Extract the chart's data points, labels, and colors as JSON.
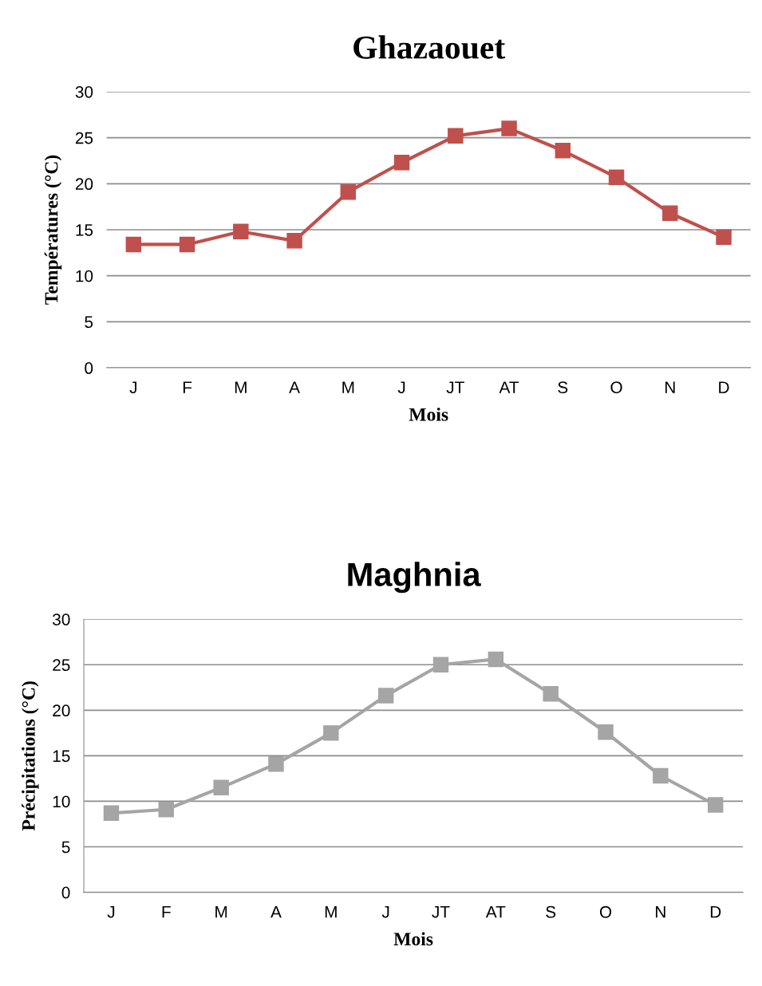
{
  "chart_data": [
    {
      "type": "line",
      "title": "Ghazaouet",
      "xlabel": "Mois",
      "ylabel": "Températures (°C)",
      "categories": [
        "J",
        "F",
        "M",
        "A",
        "M",
        "J",
        "JT",
        "AT",
        "S",
        "O",
        "N",
        "D"
      ],
      "series": [
        {
          "color": "#c0504d",
          "values": [
            13.4,
            13.4,
            14.8,
            13.8,
            19.1,
            22.3,
            25.2,
            26.0,
            23.6,
            20.7,
            16.8,
            14.2
          ]
        }
      ],
      "ylim": [
        0,
        30
      ],
      "yticks": [
        0,
        5,
        10,
        15,
        20,
        25,
        30
      ],
      "grid": "y",
      "marker": "square",
      "line_style": "solid"
    },
    {
      "type": "line",
      "title": "Maghnia",
      "xlabel": "Mois",
      "ylabel": "Précipitations (°C)",
      "categories": [
        "J",
        "F",
        "M",
        "A",
        "M",
        "J",
        "JT",
        "AT",
        "S",
        "O",
        "N",
        "D"
      ],
      "series": [
        {
          "color": "#a5a5a5",
          "values": [
            8.7,
            9.1,
            11.5,
            14.1,
            17.5,
            21.6,
            25.0,
            25.6,
            21.8,
            17.6,
            12.8,
            9.6
          ]
        }
      ],
      "ylim": [
        0,
        30
      ],
      "yticks": [
        0,
        5,
        10,
        15,
        20,
        25,
        30
      ],
      "grid": "y",
      "marker": "square",
      "line_style": "solid"
    }
  ]
}
